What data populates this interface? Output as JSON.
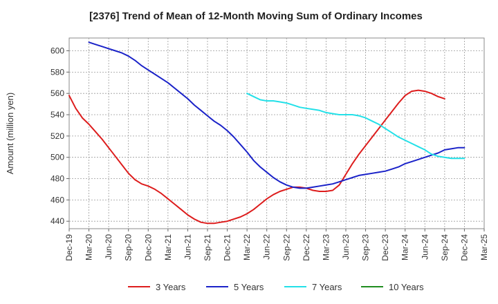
{
  "chart_data": {
    "type": "line",
    "title": "[2376]  Trend of Mean of 12-Month Moving Sum of Ordinary Incomes",
    "ylabel": "Amount (million yen)",
    "xlabel": "",
    "ylim": [
      433,
      612
    ],
    "yticks": [
      440,
      460,
      480,
      500,
      520,
      540,
      560,
      580,
      600
    ],
    "x_tick_labels": [
      "Dec-19",
      "Mar-20",
      "Jun-20",
      "Sep-20",
      "Dec-20",
      "Mar-21",
      "Jun-21",
      "Sep-21",
      "Dec-21",
      "Mar-22",
      "Jun-22",
      "Sep-22",
      "Dec-22",
      "Mar-23",
      "Jun-23",
      "Sep-23",
      "Dec-23",
      "Mar-24",
      "Jun-24",
      "Sep-24",
      "Dec-24",
      "Mar-25"
    ],
    "grid": true,
    "legend_position": "bottom",
    "series": [
      {
        "name": "3 Years",
        "color": "#dd1c1c",
        "start_index": 0,
        "values": [
          558,
          546,
          537,
          531,
          524,
          517,
          509,
          501,
          493,
          485,
          479,
          475,
          473,
          470,
          466,
          461,
          456,
          451,
          446,
          442,
          439,
          438,
          438,
          439,
          440,
          442,
          444,
          447,
          451,
          456,
          461,
          465,
          468,
          470,
          472,
          472,
          471,
          469,
          468,
          468,
          469,
          474,
          484,
          494,
          503,
          511,
          519,
          527,
          535,
          543,
          551,
          558,
          562,
          563,
          562,
          560,
          557,
          555
        ]
      },
      {
        "name": "5 Years",
        "color": "#1a22c8",
        "start_index": 3,
        "values": [
          608,
          606,
          604,
          602,
          600,
          598,
          595,
          591,
          586,
          582,
          578,
          574,
          570,
          565,
          560,
          555,
          549,
          544,
          539,
          534,
          530,
          525,
          519,
          512,
          505,
          497,
          491,
          486,
          481,
          477,
          474,
          472,
          471,
          471,
          472,
          473,
          474,
          475,
          477,
          479,
          481,
          483,
          484,
          485,
          486,
          487,
          489,
          491,
          494,
          496,
          498,
          500,
          502,
          504,
          507,
          508,
          509,
          509
        ]
      },
      {
        "name": "7 Years",
        "color": "#22e0e8",
        "start_index": 27,
        "values": [
          560,
          557,
          554,
          553,
          553,
          552,
          551,
          549,
          547,
          546,
          545,
          544,
          542,
          541,
          540,
          540,
          540,
          539,
          537,
          534,
          531,
          527,
          523,
          519,
          516,
          513,
          510,
          507,
          503,
          501,
          500,
          499,
          499,
          499
        ]
      },
      {
        "name": "10 Years",
        "color": "#1e8c1e",
        "start_index": 0,
        "values": []
      }
    ]
  }
}
